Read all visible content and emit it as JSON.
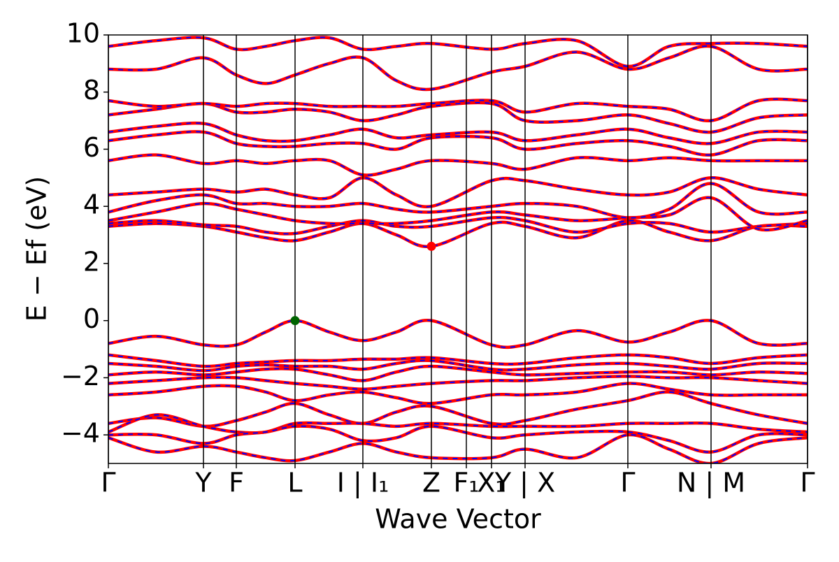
{
  "chart_data": {
    "type": "band_structure",
    "xlabel": "Wave Vector",
    "ylabel": "E − Ef (eV)",
    "xlim": [
      0,
      5.0
    ],
    "ylim": [
      -5,
      10
    ],
    "xticks": [
      {
        "value": 0,
        "label": "Γ"
      },
      {
        "value": 0.68,
        "label": "Y"
      },
      {
        "value": 0.915,
        "label": "F"
      },
      {
        "value": 1.335,
        "label": "L"
      },
      {
        "value": 1.82,
        "label": "I | I₁"
      },
      {
        "value": 2.31,
        "label": "Z"
      },
      {
        "value": 2.56,
        "label": "F₁"
      },
      {
        "value": 2.74,
        "label": "X₁"
      },
      {
        "value": 2.98,
        "label": "Y | X"
      },
      {
        "value": 3.715,
        "label": "Γ"
      },
      {
        "value": 4.31,
        "label": "N | M"
      },
      {
        "value": 5.0,
        "label": "Γ"
      }
    ],
    "yticks": [
      {
        "value": -4,
        "label": "−4"
      },
      {
        "value": -2,
        "label": "−2"
      },
      0,
      2,
      4,
      6,
      8,
      10
    ],
    "line_color": "#ff0000",
    "dash_color": "#0000ff",
    "vertical_lines": true,
    "x": [
      0,
      0.34,
      0.68,
      0.915,
      1.125,
      1.335,
      1.58,
      1.82,
      2.06,
      2.31,
      2.74,
      2.98,
      3.35,
      3.715,
      4.01,
      4.31,
      4.65,
      5.0
    ],
    "bands": [
      {
        "values": [
          -0.8,
          -0.55,
          -0.85,
          -0.85,
          -0.4,
          0,
          -0.4,
          -0.7,
          -0.4,
          0,
          -0.85,
          -0.85,
          -0.35,
          -0.75,
          -0.4,
          0,
          -0.8,
          -0.8
        ]
      },
      {
        "values": [
          -1.2,
          -1.4,
          -1.6,
          -1.5,
          -1.45,
          -1.4,
          -1.4,
          -1.35,
          -1.35,
          -1.3,
          -1.5,
          -1.5,
          -1.3,
          -1.2,
          -1.3,
          -1.5,
          -1.3,
          -1.2
        ]
      },
      {
        "values": [
          -1.5,
          -1.6,
          -1.75,
          -1.6,
          -1.55,
          -1.6,
          -1.6,
          -1.7,
          -1.5,
          -1.4,
          -1.7,
          -1.7,
          -1.55,
          -1.5,
          -1.6,
          -1.7,
          -1.5,
          -1.5
        ]
      },
      {
        "values": [
          -1.9,
          -1.8,
          -1.9,
          -1.8,
          -1.7,
          -1.7,
          -1.9,
          -2.1,
          -1.8,
          -1.6,
          -1.8,
          -1.9,
          -1.85,
          -1.8,
          -1.8,
          -1.9,
          -1.8,
          -1.85
        ]
      },
      {
        "values": [
          -2.2,
          -2.1,
          -2.0,
          -2.0,
          -2.1,
          -2.2,
          -2.3,
          -2.4,
          -2.3,
          -2.2,
          -2.1,
          -2.1,
          -2.0,
          -1.95,
          -2.0,
          -2.0,
          -2.1,
          -2.2
        ]
      },
      {
        "values": [
          -2.6,
          -2.5,
          -2.3,
          -2.3,
          -2.5,
          -2.8,
          -2.6,
          -2.5,
          -2.7,
          -2.9,
          -2.6,
          -2.6,
          -2.5,
          -2.2,
          -2.4,
          -2.6,
          -2.6,
          -2.6
        ]
      },
      {
        "values": [
          -3.6,
          -3.4,
          -3.7,
          -3.5,
          -3.2,
          -2.9,
          -3.3,
          -3.6,
          -3.2,
          -3.0,
          -3.6,
          -3.5,
          -3.1,
          -2.8,
          -2.5,
          -2.9,
          -3.3,
          -3.6
        ]
      },
      {
        "values": [
          -3.9,
          -3.3,
          -3.7,
          -3.9,
          -3.9,
          -3.6,
          -3.6,
          -3.6,
          -3.7,
          -3.6,
          -3.7,
          -3.7,
          -3.7,
          -3.6,
          -3.6,
          -3.6,
          -3.8,
          -3.9
        ]
      },
      {
        "values": [
          -4.0,
          -4.0,
          -4.3,
          -4.0,
          -3.9,
          -3.7,
          -3.8,
          -4.2,
          -4.1,
          -3.7,
          -4.1,
          -4.0,
          -3.9,
          -3.9,
          -4.2,
          -4.6,
          -4.0,
          -4.0
        ]
      },
      {
        "values": [
          -4.1,
          -4.6,
          -4.4,
          -4.6,
          -4.8,
          -4.9,
          -4.6,
          -4.3,
          -4.6,
          -4.8,
          -4.8,
          -4.5,
          -4.8,
          -4.0,
          -4.5,
          -5.0,
          -4.3,
          -4.1
        ]
      },
      {
        "values": [
          3.3,
          3.4,
          3.3,
          3.1,
          2.9,
          2.8,
          3.1,
          3.4,
          3.0,
          2.6,
          3.4,
          3.3,
          2.9,
          3.5,
          3.1,
          2.8,
          3.3,
          3.3
        ]
      },
      {
        "values": [
          3.4,
          3.5,
          3.35,
          3.3,
          3.1,
          3.05,
          3.3,
          3.5,
          3.3,
          3.3,
          3.6,
          3.5,
          3.1,
          3.4,
          3.4,
          3.1,
          3.3,
          3.4
        ]
      },
      {
        "values": [
          3.5,
          3.8,
          4.1,
          3.9,
          3.7,
          3.5,
          3.4,
          3.4,
          3.4,
          3.5,
          3.8,
          3.7,
          3.5,
          3.6,
          3.7,
          4.3,
          3.2,
          3.5
        ]
      },
      {
        "values": [
          3.8,
          4.2,
          4.4,
          4.1,
          4.1,
          4.0,
          4.0,
          4.1,
          3.9,
          3.8,
          4.0,
          4.1,
          4.0,
          3.6,
          3.9,
          4.8,
          3.8,
          3.8
        ]
      },
      {
        "values": [
          4.4,
          4.5,
          4.6,
          4.5,
          4.6,
          4.4,
          4.3,
          5.0,
          4.4,
          4.0,
          4.9,
          4.9,
          4.6,
          4.4,
          4.5,
          5.0,
          4.6,
          4.4
        ]
      },
      {
        "values": [
          5.6,
          5.8,
          5.5,
          5.6,
          5.5,
          5.6,
          5.6,
          5.1,
          5.3,
          5.6,
          5.5,
          5.3,
          5.7,
          5.6,
          5.7,
          5.6,
          5.6,
          5.6
        ]
      },
      {
        "values": [
          6.3,
          6.5,
          6.6,
          6.2,
          6.1,
          6.1,
          6.2,
          6.2,
          6.0,
          6.4,
          6.4,
          6.0,
          6.2,
          6.3,
          6.1,
          5.8,
          6.3,
          6.3
        ]
      },
      {
        "values": [
          6.6,
          6.8,
          6.9,
          6.5,
          6.3,
          6.3,
          6.5,
          6.7,
          6.4,
          6.5,
          6.6,
          6.3,
          6.5,
          6.7,
          6.4,
          6.2,
          6.6,
          6.6
        ]
      },
      {
        "values": [
          7.2,
          7.4,
          7.6,
          7.3,
          7.3,
          7.4,
          7.3,
          7.0,
          7.2,
          7.5,
          7.6,
          7.0,
          7.0,
          7.2,
          6.9,
          6.6,
          7.1,
          7.2
        ]
      },
      {
        "values": [
          7.7,
          7.5,
          7.6,
          7.5,
          7.6,
          7.6,
          7.5,
          7.5,
          7.5,
          7.6,
          7.7,
          7.3,
          7.6,
          7.5,
          7.4,
          7.0,
          7.7,
          7.7
        ]
      },
      {
        "values": [
          8.8,
          8.8,
          9.2,
          8.6,
          8.3,
          8.6,
          9.0,
          9.2,
          8.4,
          8.1,
          8.7,
          8.9,
          9.4,
          8.8,
          9.2,
          9.6,
          8.8,
          8.8
        ]
      },
      {
        "values": [
          9.6,
          9.8,
          9.9,
          9.5,
          9.6,
          9.8,
          9.9,
          9.5,
          9.6,
          9.7,
          9.5,
          9.7,
          9.8,
          8.9,
          9.6,
          9.7,
          9.7,
          9.6
        ]
      }
    ],
    "markers": [
      {
        "x": 1.335,
        "y": 0,
        "color": "#006400"
      },
      {
        "x": 2.31,
        "y": 2.6,
        "color": "#ff0000"
      }
    ]
  }
}
